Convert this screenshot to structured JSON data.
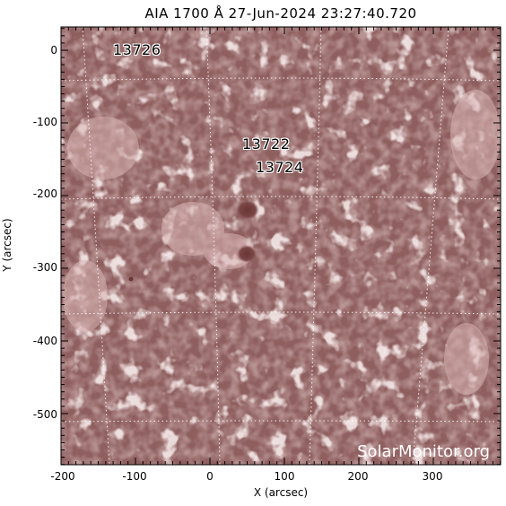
{
  "figure": {
    "title": "AIA 1700 Å 27-Jun-2024 23:27:40.720",
    "xlabel": "X (arcsec)",
    "ylabel": "Y (arcsec)",
    "watermark": "SolarMonitor.org",
    "x_ticks": [
      "-200",
      "-100",
      "0",
      "100",
      "200",
      "300"
    ],
    "y_ticks": [
      "0",
      "-100",
      "-200",
      "-300",
      "-400",
      "-500"
    ],
    "background_color": "#8d5c5c",
    "active_regions": [
      {
        "number": "13726",
        "x": -105,
        "y": 0
      },
      {
        "number": "13722",
        "x": 80,
        "y": -130
      },
      {
        "number": "13724",
        "x": 95,
        "y": -160
      }
    ]
  }
}
